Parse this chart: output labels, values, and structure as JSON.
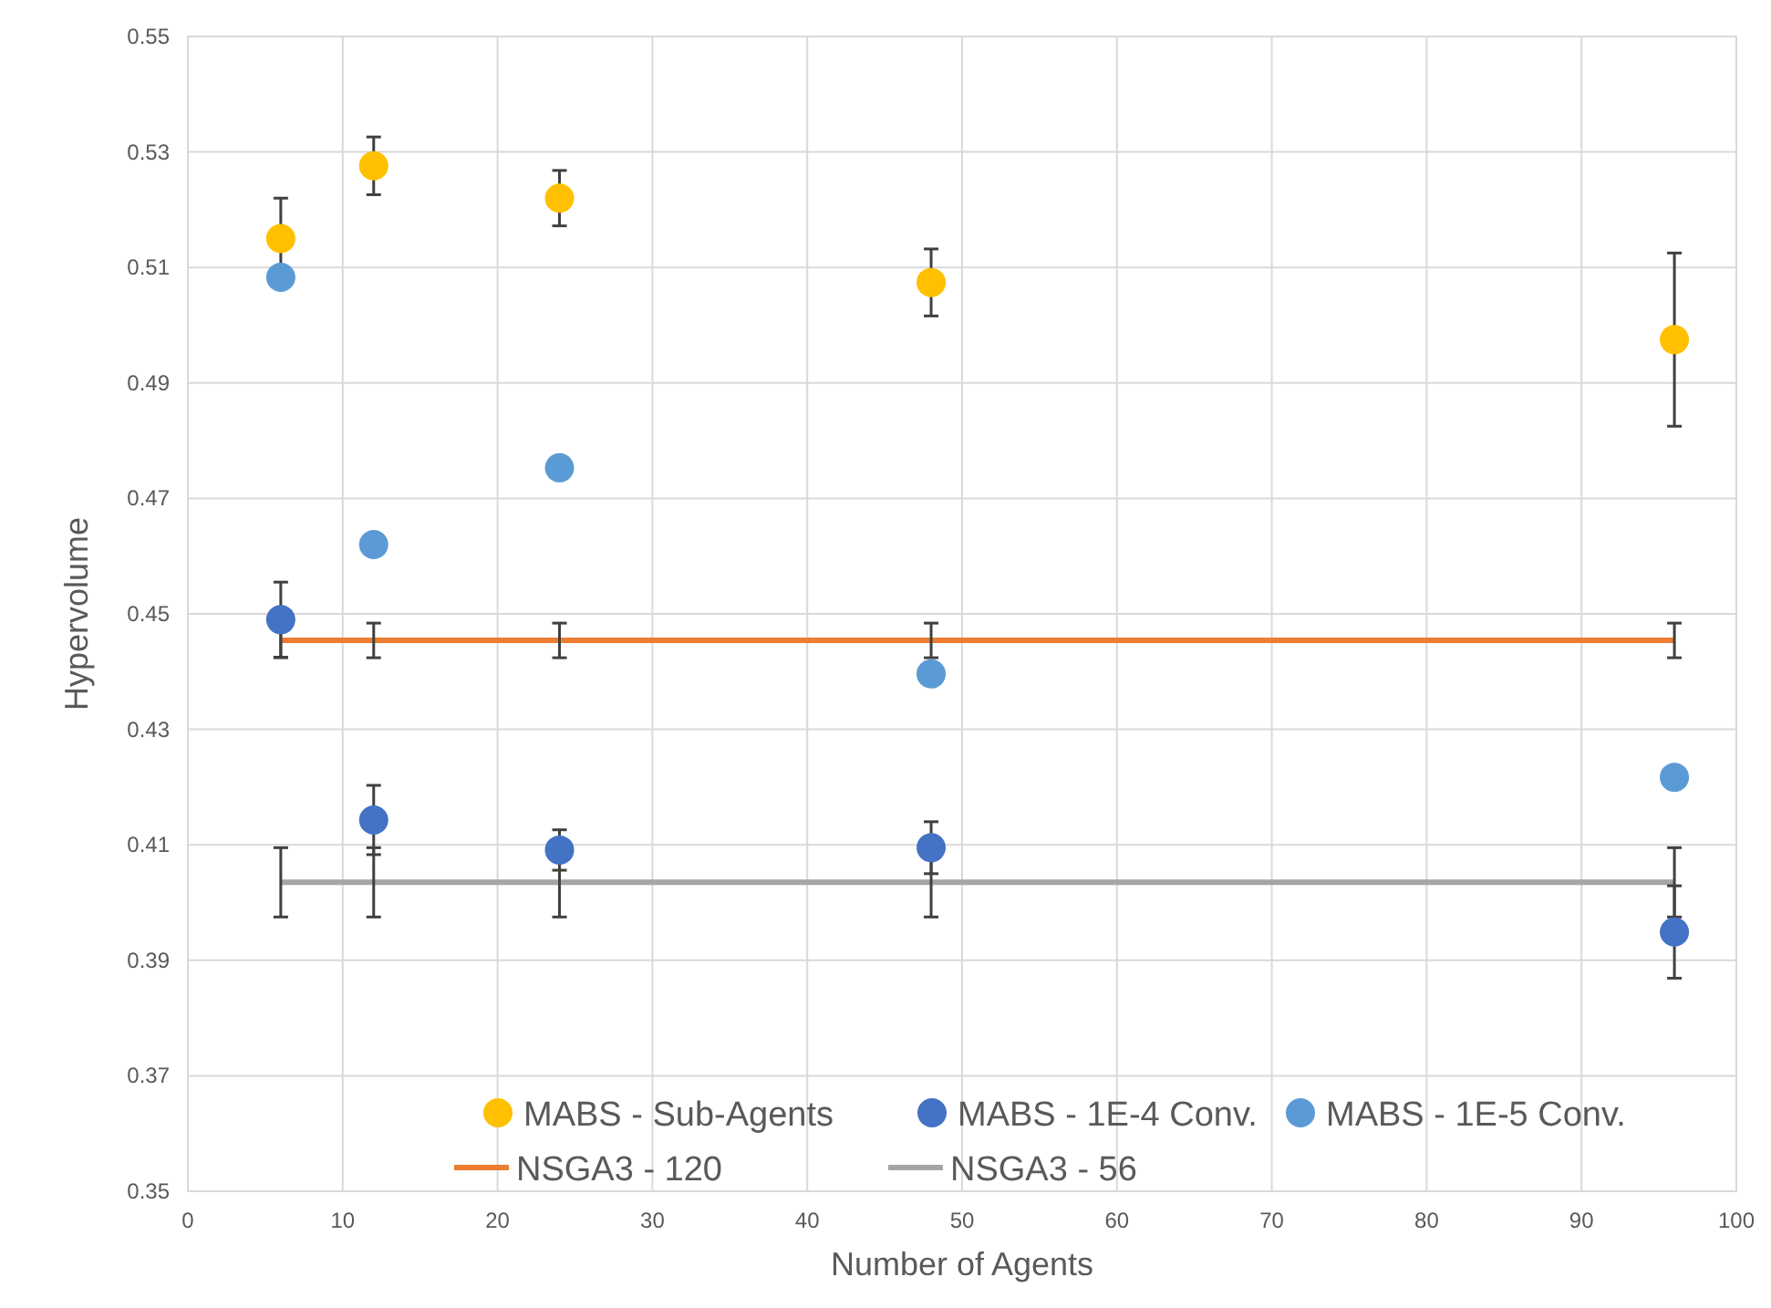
{
  "chart_data": {
    "type": "scatter",
    "xlabel": "Number of Agents",
    "ylabel": "Hypervolume",
    "x": [
      6,
      12,
      24,
      48,
      96
    ],
    "xlim": [
      0,
      100
    ],
    "xticks": [
      0,
      10,
      20,
      30,
      40,
      50,
      60,
      70,
      80,
      90,
      100
    ],
    "ylim": [
      0.35,
      0.55
    ],
    "yticks": [
      0.35,
      0.37,
      0.39,
      0.41,
      0.43,
      0.45,
      0.47,
      0.49,
      0.51,
      0.53,
      0.55
    ],
    "grid": true,
    "legend": "bottom",
    "marker": "circle",
    "series": [
      {
        "name": "MABS - Sub-Agents",
        "color": "#ffc000",
        "values": [
          0.515,
          0.5276,
          0.522,
          0.5074,
          0.4975
        ],
        "errors": [
          0.007,
          0.005,
          0.0048,
          0.0058,
          0.015
        ]
      },
      {
        "name": "MABS - 1E-4 Conv.",
        "color": "#4472c4",
        "values": [
          0.449,
          0.4143,
          0.4091,
          0.4095,
          0.3949
        ],
        "errors": [
          0.0065,
          0.006,
          0.0035,
          0.0045,
          0.008
        ]
      },
      {
        "name": "MABS - 1E-5 Conv.",
        "color": "#5b9bd5",
        "values": [
          0.5083,
          0.462,
          0.4753,
          0.4396,
          0.4217
        ]
      },
      {
        "name": "NSGA3 - 120",
        "type": "line",
        "marker": "none",
        "color": "#ed7d31",
        "values": [
          0.4454,
          0.4454,
          0.4454,
          0.4454,
          0.4454
        ],
        "errors": [
          0.003,
          0.003,
          0.003,
          0.003,
          0.003
        ]
      },
      {
        "name": "NSGA3 - 56",
        "type": "line",
        "marker": "none",
        "color": "#a5a5a5",
        "values": [
          0.4035,
          0.4035,
          0.4035,
          0.4035,
          0.4035
        ],
        "errors": [
          0.006,
          0.006,
          0.006,
          0.006,
          0.006
        ]
      }
    ]
  }
}
